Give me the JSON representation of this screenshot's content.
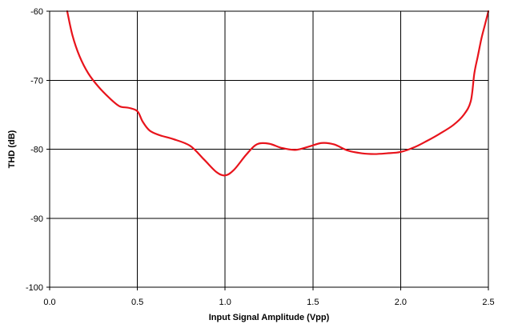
{
  "chart_data": {
    "type": "line",
    "title": "",
    "xlabel": "Input Signal Amplitude (Vpp)",
    "ylabel": "THD (dB)",
    "xlim": [
      0.0,
      2.5
    ],
    "ylim": [
      -100,
      -60
    ],
    "xticks": [
      0.0,
      0.5,
      1.0,
      1.5,
      2.0,
      2.5
    ],
    "xtick_labels": [
      "0.0",
      "0.5",
      "1.0",
      "1.5",
      "2.0",
      "2.5"
    ],
    "yticks": [
      -100,
      -90,
      -80,
      -70,
      -60
    ],
    "ytick_labels": [
      "-100",
      "-90",
      "-80",
      "-70",
      "-60"
    ],
    "grid": true,
    "legend": "none",
    "series": [
      {
        "color": "#e8141c",
        "x": [
          0.1,
          0.13,
          0.17,
          0.22,
          0.28,
          0.35,
          0.4,
          0.45,
          0.5,
          0.53,
          0.57,
          0.63,
          0.7,
          0.8,
          0.88,
          0.95,
          1.0,
          1.05,
          1.12,
          1.18,
          1.25,
          1.32,
          1.4,
          1.48,
          1.55,
          1.62,
          1.7,
          1.78,
          1.85,
          1.92,
          2.0,
          2.08,
          2.15,
          2.22,
          2.3,
          2.36,
          2.4,
          2.42,
          2.44,
          2.46,
          2.48,
          2.5
        ],
        "y": [
          -60.0,
          -63.5,
          -66.5,
          -69.0,
          -71.0,
          -72.8,
          -73.8,
          -74.0,
          -74.5,
          -76.0,
          -77.3,
          -78.0,
          -78.5,
          -79.5,
          -81.5,
          -83.3,
          -83.8,
          -83.0,
          -80.8,
          -79.3,
          -79.2,
          -79.8,
          -80.1,
          -79.6,
          -79.1,
          -79.3,
          -80.2,
          -80.6,
          -80.7,
          -80.6,
          -80.4,
          -79.7,
          -78.8,
          -77.8,
          -76.5,
          -75.0,
          -73.0,
          -69.0,
          -66.5,
          -64.0,
          -62.0,
          -60.0
        ]
      }
    ]
  }
}
